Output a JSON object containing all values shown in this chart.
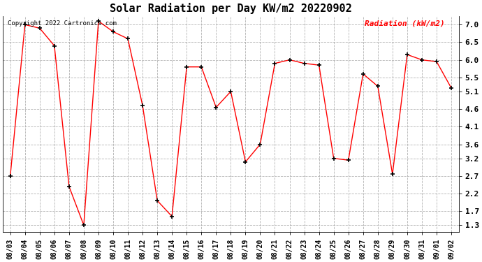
{
  "title": "Solar Radiation per Day KW/m2 20220902",
  "copyright": "Copyright 2022 Cartronics.com",
  "legend_label": "Radiation (kW/m2)",
  "dates": [
    "08/03",
    "08/04",
    "08/05",
    "08/06",
    "08/07",
    "08/08",
    "08/09",
    "08/10",
    "08/11",
    "08/12",
    "08/13",
    "08/14",
    "08/15",
    "08/16",
    "08/17",
    "08/18",
    "08/19",
    "08/20",
    "08/21",
    "08/22",
    "08/23",
    "08/24",
    "08/25",
    "08/26",
    "08/27",
    "08/28",
    "08/29",
    "08/30",
    "08/31",
    "09/01",
    "09/02"
  ],
  "values": [
    2.7,
    7.0,
    6.9,
    6.4,
    2.4,
    1.3,
    7.1,
    6.8,
    6.6,
    4.7,
    2.0,
    1.55,
    5.8,
    5.8,
    4.65,
    5.1,
    3.1,
    3.6,
    5.9,
    6.0,
    5.9,
    5.85,
    3.2,
    3.15,
    5.6,
    5.25,
    2.75,
    6.15,
    6.0,
    5.95,
    5.2
  ],
  "line_color": "#ff0000",
  "marker_color": "#000000",
  "background_color": "#ffffff",
  "grid_color": "#aaaaaa",
  "yticks": [
    1.3,
    1.7,
    2.2,
    2.7,
    3.2,
    3.6,
    4.1,
    4.6,
    5.1,
    5.5,
    6.0,
    6.5,
    7.0
  ],
  "ylim": [
    1.1,
    7.25
  ],
  "title_color": "#000000",
  "copyright_color": "#000000",
  "legend_color": "#ff0000",
  "figsize": [
    6.9,
    3.75
  ],
  "dpi": 100
}
